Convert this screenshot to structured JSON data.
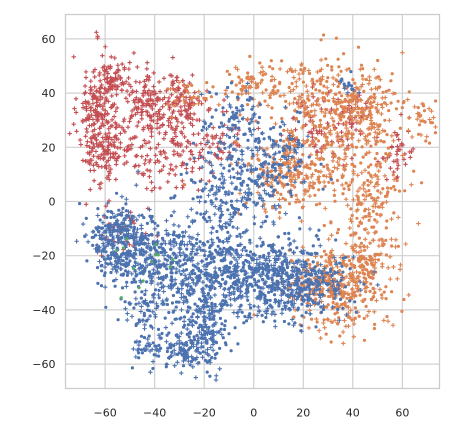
{
  "chart_data": {
    "type": "scatter",
    "title": "",
    "xlabel": "",
    "ylabel": "",
    "xlim": [
      -76,
      75
    ],
    "ylim": [
      -69,
      69
    ],
    "x_ticks": [
      -60,
      -40,
      -20,
      0,
      20,
      40,
      60
    ],
    "y_ticks": [
      -60,
      -40,
      -20,
      0,
      20,
      40,
      60
    ],
    "x_tick_labels": [
      "−60",
      "−40",
      "−20",
      "0",
      "20",
      "40",
      "60"
    ],
    "y_tick_labels": [
      "−60",
      "−40",
      "−20",
      "0",
      "20",
      "40",
      "60"
    ],
    "grid": true,
    "legend": "none",
    "series": [
      {
        "color": "#c44e52",
        "marker": "plus",
        "clusters": [
          {
            "cx": -63,
            "cy": 30,
            "sx": 4,
            "sy": 12,
            "n": 220
          },
          {
            "cx": -55,
            "cy": 20,
            "sx": 5,
            "sy": 6,
            "n": 80
          },
          {
            "cx": -58,
            "cy": 44,
            "sx": 4,
            "sy": 5,
            "n": 70
          },
          {
            "cx": -43,
            "cy": 38,
            "sx": 5,
            "sy": 6,
            "n": 120
          },
          {
            "cx": -30,
            "cy": 38,
            "sx": 4,
            "sy": 5,
            "n": 80
          },
          {
            "cx": -35,
            "cy": 20,
            "sx": 8,
            "sy": 8,
            "n": 120
          },
          {
            "cx": -18,
            "cy": 25,
            "sx": 7,
            "sy": 7,
            "n": 80
          },
          {
            "cx": 25,
            "cy": 28,
            "sx": 6,
            "sy": 6,
            "n": 60
          },
          {
            "cx": 40,
            "cy": 30,
            "sx": 4,
            "sy": 6,
            "n": 40
          },
          {
            "cx": 58,
            "cy": 18,
            "sx": 4,
            "sy": 5,
            "n": 40
          },
          {
            "cx": -52,
            "cy": -12,
            "sx": 5,
            "sy": 5,
            "n": 35
          }
        ]
      },
      {
        "color": "#dd8452",
        "marker": "mixed",
        "clusters": [
          {
            "cx": 25,
            "cy": 40,
            "sx": 12,
            "sy": 8,
            "n": 200
          },
          {
            "cx": 45,
            "cy": 35,
            "sx": 8,
            "sy": 7,
            "n": 160
          },
          {
            "cx": 30,
            "cy": 15,
            "sx": 14,
            "sy": 10,
            "n": 260
          },
          {
            "cx": 0,
            "cy": 42,
            "sx": 6,
            "sy": 4,
            "n": 60
          },
          {
            "cx": 12,
            "cy": 10,
            "sx": 8,
            "sy": 6,
            "n": 120
          },
          {
            "cx": 48,
            "cy": 2,
            "sx": 5,
            "sy": 6,
            "n": 100
          },
          {
            "cx": 45,
            "cy": -20,
            "sx": 6,
            "sy": 8,
            "n": 160
          },
          {
            "cx": 35,
            "cy": -35,
            "sx": 9,
            "sy": 7,
            "n": 220
          },
          {
            "cx": 25,
            "cy": -28,
            "sx": 8,
            "sy": 6,
            "n": 120
          },
          {
            "cx": 68,
            "cy": 30,
            "sx": 3,
            "sy": 4,
            "n": 35
          },
          {
            "cx": -25,
            "cy": 40,
            "sx": 5,
            "sy": 3,
            "n": 30
          }
        ]
      },
      {
        "color": "#4c72b0",
        "marker": "mixed",
        "clusters": [
          {
            "cx": -55,
            "cy": -15,
            "sx": 6,
            "sy": 7,
            "n": 300
          },
          {
            "cx": -40,
            "cy": -20,
            "sx": 8,
            "sy": 6,
            "n": 250
          },
          {
            "cx": -20,
            "cy": -25,
            "sx": 9,
            "sy": 7,
            "n": 280
          },
          {
            "cx": 5,
            "cy": -28,
            "sx": 12,
            "sy": 8,
            "n": 420
          },
          {
            "cx": 20,
            "cy": -30,
            "sx": 10,
            "sy": 6,
            "n": 260
          },
          {
            "cx": -20,
            "cy": -45,
            "sx": 6,
            "sy": 8,
            "n": 220
          },
          {
            "cx": -30,
            "cy": -55,
            "sx": 6,
            "sy": 3,
            "n": 100
          },
          {
            "cx": -42,
            "cy": -40,
            "sx": 5,
            "sy": 6,
            "n": 80
          },
          {
            "cx": 0,
            "cy": 10,
            "sx": 10,
            "sy": 8,
            "n": 200
          },
          {
            "cx": -12,
            "cy": 0,
            "sx": 8,
            "sy": 7,
            "n": 100
          },
          {
            "cx": -8,
            "cy": 30,
            "sx": 6,
            "sy": 6,
            "n": 80
          },
          {
            "cx": 12,
            "cy": 20,
            "sx": 6,
            "sy": 5,
            "n": 60
          },
          {
            "cx": 38,
            "cy": 45,
            "sx": 2,
            "sy": 3,
            "n": 15
          },
          {
            "cx": -45,
            "cy": -55,
            "sx": 3,
            "sy": 2,
            "n": 20
          }
        ]
      },
      {
        "color": "#55a868",
        "marker": "dot",
        "clusters": [
          {
            "cx": -48,
            "cy": -16,
            "sx": 6,
            "sy": 4,
            "n": 6
          },
          {
            "cx": -38,
            "cy": -20,
            "sx": 4,
            "sy": 3,
            "n": 4
          },
          {
            "cx": -50,
            "cy": -32,
            "sx": 3,
            "sy": 3,
            "n": 3
          }
        ]
      }
    ]
  }
}
